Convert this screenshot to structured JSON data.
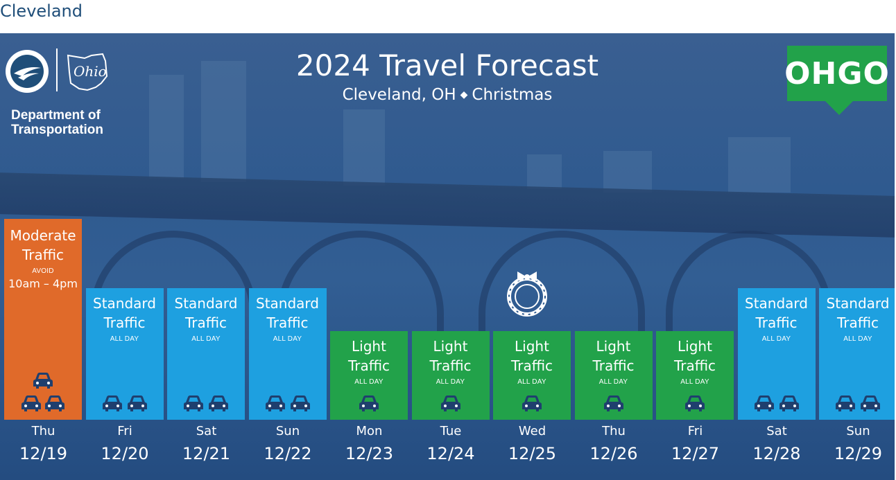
{
  "page": {
    "heading": "Cleveland"
  },
  "header": {
    "dept_line1": "Department of",
    "dept_line2": "Transportation",
    "ohio_script": "Ohio",
    "title": "2024 Travel Forecast",
    "subtitle_location": "Cleveland, OH",
    "subtitle_holiday": "Christmas",
    "brand": "OHGO"
  },
  "colors": {
    "moderate": "#e06a2a",
    "standard": "#1ea0e0",
    "light": "#22a24a",
    "background": "#2f5a8f"
  },
  "icons": {
    "car": "car-icon",
    "wreath": "wreath-icon",
    "logo": "odot-logo-icon"
  },
  "days": [
    {
      "day": "Thu",
      "date": "12/19",
      "level": "moderate",
      "line1": "Moderate",
      "line2": "Traffic",
      "note": "AVOID",
      "time": "10am – 4pm",
      "cars": 3
    },
    {
      "day": "Fri",
      "date": "12/20",
      "level": "standard",
      "line1": "Standard",
      "line2": "Traffic",
      "note": "ALL DAY",
      "time": "",
      "cars": 2
    },
    {
      "day": "Sat",
      "date": "12/21",
      "level": "standard",
      "line1": "Standard",
      "line2": "Traffic",
      "note": "ALL DAY",
      "time": "",
      "cars": 2
    },
    {
      "day": "Sun",
      "date": "12/22",
      "level": "standard",
      "line1": "Standard",
      "line2": "Traffic",
      "note": "ALL DAY",
      "time": "",
      "cars": 2
    },
    {
      "day": "Mon",
      "date": "12/23",
      "level": "light",
      "line1": "Light",
      "line2": "Traffic",
      "note": "ALL DAY",
      "time": "",
      "cars": 1
    },
    {
      "day": "Tue",
      "date": "12/24",
      "level": "light",
      "line1": "Light",
      "line2": "Traffic",
      "note": "ALL DAY",
      "time": "",
      "cars": 1
    },
    {
      "day": "Wed",
      "date": "12/25",
      "level": "light",
      "line1": "Light",
      "line2": "Traffic",
      "note": "ALL DAY",
      "time": "",
      "cars": 1
    },
    {
      "day": "Thu",
      "date": "12/26",
      "level": "light",
      "line1": "Light",
      "line2": "Traffic",
      "note": "ALL DAY",
      "time": "",
      "cars": 1
    },
    {
      "day": "Fri",
      "date": "12/27",
      "level": "light",
      "line1": "Light",
      "line2": "Traffic",
      "note": "ALL DAY",
      "time": "",
      "cars": 1
    },
    {
      "day": "Sat",
      "date": "12/28",
      "level": "standard",
      "line1": "Standard",
      "line2": "Traffic",
      "note": "ALL DAY",
      "time": "",
      "cars": 2
    },
    {
      "day": "Sun",
      "date": "12/29",
      "level": "standard",
      "line1": "Standard",
      "line2": "Traffic",
      "note": "ALL DAY",
      "time": "",
      "cars": 2
    }
  ]
}
